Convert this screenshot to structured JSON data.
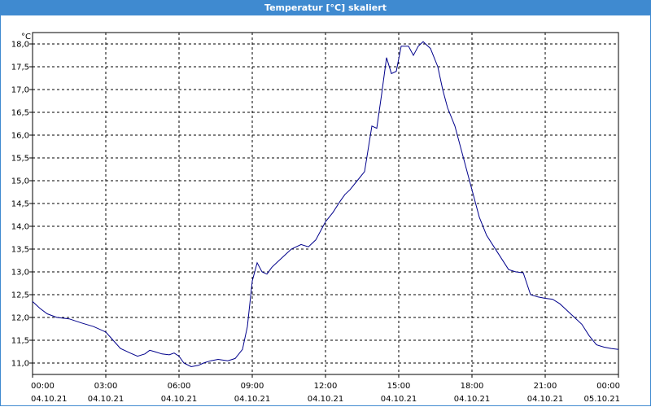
{
  "chart_data": {
    "type": "line",
    "title": "Temperatur [°C] skaliert",
    "ylabel": "°C",
    "xlabel": "",
    "ylim": [
      10.75,
      18.25
    ],
    "xlim_hours": [
      0,
      24
    ],
    "grid": true,
    "y_ticks": [
      "11,0",
      "11,5",
      "12,0",
      "12,5",
      "13,0",
      "13,5",
      "14,0",
      "14,5",
      "15,0",
      "15,5",
      "16,0",
      "16,5",
      "17,0",
      "17,5",
      "18,0"
    ],
    "x_ticks": [
      {
        "time": "00:00",
        "date": "04.10.21"
      },
      {
        "time": "03:00",
        "date": "04.10.21"
      },
      {
        "time": "06:00",
        "date": "04.10.21"
      },
      {
        "time": "09:00",
        "date": "04.10.21"
      },
      {
        "time": "12:00",
        "date": "04.10.21"
      },
      {
        "time": "15:00",
        "date": "04.10.21"
      },
      {
        "time": "18:00",
        "date": "04.10.21"
      },
      {
        "time": "21:00",
        "date": "04.10.21"
      },
      {
        "time": "00:00",
        "date": "05.10.21"
      }
    ],
    "series": [
      {
        "color": "#00008b",
        "x": [
          0,
          0.3,
          0.6,
          1.0,
          1.5,
          2.0,
          2.5,
          3.0,
          3.3,
          3.6,
          4.0,
          4.3,
          4.6,
          4.8,
          5.0,
          5.3,
          5.6,
          5.8,
          6.0,
          6.2,
          6.5,
          6.8,
          7.0,
          7.3,
          7.6,
          8.0,
          8.3,
          8.6,
          8.8,
          9.0,
          9.2,
          9.4,
          9.6,
          9.8,
          10.0,
          10.3,
          10.6,
          11.0,
          11.3,
          11.6,
          11.8,
          12.0,
          12.3,
          12.6,
          12.8,
          13.0,
          13.3,
          13.6,
          13.9,
          14.1,
          14.3,
          14.5,
          14.7,
          14.9,
          15.1,
          15.4,
          15.6,
          15.8,
          16.0,
          16.3,
          16.6,
          16.8,
          17.0,
          17.3,
          17.6,
          18.0,
          18.3,
          18.6,
          18.9,
          19.2,
          19.5,
          19.8,
          20.1,
          20.4,
          20.7,
          21.0,
          21.3,
          21.6,
          21.9,
          22.2,
          22.5,
          22.8,
          23.1,
          23.4,
          23.7,
          24.0
        ],
        "y": [
          12.35,
          12.2,
          12.08,
          12.0,
          11.97,
          11.88,
          11.8,
          11.68,
          11.5,
          11.32,
          11.22,
          11.15,
          11.2,
          11.28,
          11.25,
          11.2,
          11.18,
          11.22,
          11.15,
          11.0,
          10.92,
          10.95,
          11.0,
          11.05,
          11.08,
          11.05,
          11.1,
          11.3,
          11.8,
          12.8,
          13.2,
          13.0,
          12.95,
          13.1,
          13.2,
          13.35,
          13.5,
          13.6,
          13.55,
          13.7,
          13.9,
          14.1,
          14.3,
          14.55,
          14.7,
          14.8,
          15.0,
          15.2,
          16.2,
          16.15,
          16.9,
          17.7,
          17.35,
          17.4,
          17.95,
          17.95,
          17.75,
          17.95,
          18.05,
          17.9,
          17.5,
          17.0,
          16.6,
          16.2,
          15.6,
          14.8,
          14.2,
          13.8,
          13.55,
          13.3,
          13.05,
          13.0,
          12.98,
          12.5,
          12.45,
          12.42,
          12.4,
          12.3,
          12.15,
          12.0,
          11.85,
          11.6,
          11.4,
          11.35,
          11.32,
          11.3
        ]
      }
    ]
  }
}
